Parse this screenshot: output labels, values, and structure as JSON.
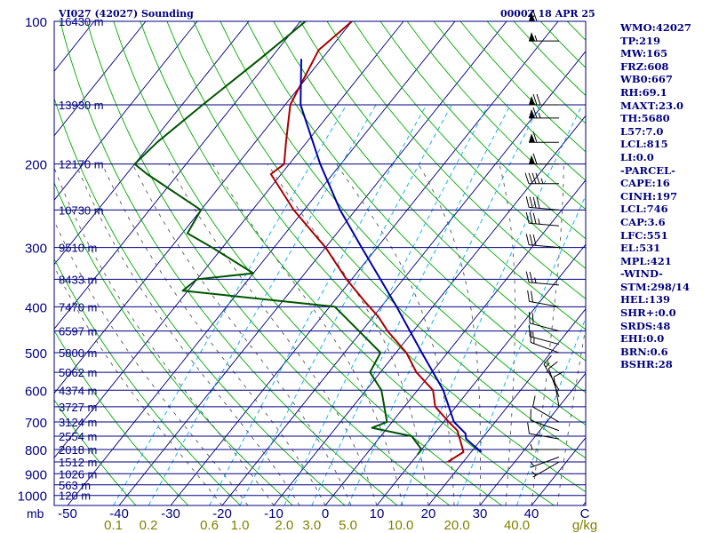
{
  "header": {
    "station_title": "VI027 (42027) Sounding",
    "valid_time": "0000Z 18 APR 25"
  },
  "indices": [
    "WMO:42027",
    "TP:219",
    "MW:165",
    "FRZ:608",
    "WB0:667",
    "RH:69.1",
    "MAXT:23.0",
    "TH:5680",
    "L57:7.0",
    "LCL:815",
    "LI:0.0",
    "-PARCEL-",
    "CAPE:16",
    "CINH:197",
    "LCL:746",
    "CAP:3.6",
    "LFC:551",
    "EL:531",
    "MPL:421",
    "-WIND-",
    "STM:298/14",
    "HEL:139",
    "SHR+:0.0",
    "SRDS:48",
    "EHI:0.0",
    "BRN:0.6",
    "BSHR:28"
  ],
  "colors": {
    "isobar": "#000080",
    "isotherm": "#000080",
    "dry_adiabat": "#00aa00",
    "mixing_ratio": "#00aaee",
    "moist_adiabat": "#555555",
    "temperature": "#aa0000",
    "dewpoint": "#005500",
    "parcel": "#0000aa",
    "wind_barb": "#000000",
    "axis_text": "#000080",
    "mixing_ratio_text": "#808000"
  },
  "chart_data": {
    "type": "line",
    "title": "VI027 (42027) Sounding",
    "xlabel": "C",
    "ylabel": "mb",
    "pressure_levels": [
      100,
      200,
      300,
      400,
      500,
      600,
      700,
      800,
      900,
      1000
    ],
    "pressure_labels": [
      "100",
      "200",
      "300",
      "400",
      "500",
      "600",
      "700",
      "800",
      "900",
      "1000"
    ],
    "pressure_axis_unit": "mb",
    "temperature_ticks": [
      "-50",
      "-40",
      "-30",
      "-20",
      "-10",
      "0",
      "10",
      "20",
      "30",
      "40"
    ],
    "temperature_tick_values": [
      -50,
      -40,
      -30,
      -20,
      -10,
      0,
      10,
      20,
      30,
      40
    ],
    "temperature_axis_unit": "C",
    "mixing_ratio_labels": [
      "0.1",
      "0.2",
      "0.6",
      "1.0",
      "2.0",
      "3.0",
      "5.0",
      "10.0",
      "20.0",
      "40.0"
    ],
    "mixing_ratio_values": [
      0.1,
      0.2,
      0.6,
      1.0,
      2.0,
      3.0,
      5.0,
      10.0,
      20.0,
      40.0
    ],
    "mixing_ratio_unit": "g/kg",
    "height_labels": [
      {
        "p": 100,
        "label": "16430 m"
      },
      {
        "p": 150,
        "label": "13930 m"
      },
      {
        "p": 200,
        "label": "12170 m"
      },
      {
        "p": 250,
        "label": "10730 m"
      },
      {
        "p": 300,
        "label": "9510 m"
      },
      {
        "p": 350,
        "label": "8433 m"
      },
      {
        "p": 400,
        "label": "7470 m"
      },
      {
        "p": 450,
        "label": "6597 m"
      },
      {
        "p": 500,
        "label": "5800 m"
      },
      {
        "p": 550,
        "label": "5062 m"
      },
      {
        "p": 600,
        "label": "4374 m"
      },
      {
        "p": 650,
        "label": "3727 m"
      },
      {
        "p": 700,
        "label": "3124 m"
      },
      {
        "p": 750,
        "label": "2554 m"
      },
      {
        "p": 800,
        "label": "2018 m"
      },
      {
        "p": 850,
        "label": "1512 m"
      },
      {
        "p": 900,
        "label": "1026 m"
      },
      {
        "p": 950,
        "label": "563 m"
      },
      {
        "p": 1000,
        "label": "120 m"
      }
    ],
    "extra_isobars": [
      150,
      250,
      350,
      450,
      550,
      650,
      750,
      850,
      950
    ],
    "series": [
      {
        "key": "temperature",
        "points": [
          [
            100,
            -70
          ],
          [
            115,
            -72
          ],
          [
            150,
            -69
          ],
          [
            180,
            -64
          ],
          [
            200,
            -61
          ],
          [
            210,
            -62
          ],
          [
            250,
            -52
          ],
          [
            300,
            -40
          ],
          [
            350,
            -31
          ],
          [
            390,
            -24
          ],
          [
            420,
            -19
          ],
          [
            450,
            -15
          ],
          [
            500,
            -8
          ],
          [
            550,
            -3
          ],
          [
            600,
            3
          ],
          [
            650,
            6
          ],
          [
            700,
            11
          ],
          [
            730,
            14
          ],
          [
            800,
            18
          ],
          [
            810,
            18.5
          ],
          [
            850,
            17
          ]
        ]
      },
      {
        "key": "dewpoint",
        "points": [
          [
            100,
            -79
          ],
          [
            120,
            -82
          ],
          [
            150,
            -86
          ],
          [
            180,
            -89
          ],
          [
            200,
            -90
          ],
          [
            210,
            -86
          ],
          [
            250,
            -70
          ],
          [
            280,
            -69
          ],
          [
            300,
            -62
          ],
          [
            340,
            -50
          ],
          [
            350,
            -60
          ],
          [
            370,
            -61
          ],
          [
            400,
            -29
          ],
          [
            500,
            -13
          ],
          [
            550,
            -12
          ],
          [
            600,
            -7
          ],
          [
            700,
            -1
          ],
          [
            720,
            -3
          ],
          [
            750,
            6
          ],
          [
            800,
            10
          ],
          [
            820,
            10
          ]
        ]
      },
      {
        "key": "parcel",
        "points": [
          [
            810,
            22
          ],
          [
            780,
            19
          ],
          [
            760,
            17
          ],
          [
            740,
            16
          ],
          [
            700,
            12
          ],
          [
            600,
            5
          ],
          [
            500,
            -5
          ],
          [
            400,
            -17
          ],
          [
            300,
            -33
          ],
          [
            250,
            -43
          ],
          [
            200,
            -54
          ],
          [
            150,
            -67
          ],
          [
            120,
            -74
          ]
        ]
      }
    ],
    "winds": [
      {
        "p": 100,
        "dir": 270,
        "spd": 60
      },
      {
        "p": 110,
        "dir": 270,
        "spd": 55
      },
      {
        "p": 150,
        "dir": 270,
        "spd": 70
      },
      {
        "p": 160,
        "dir": 270,
        "spd": 65
      },
      {
        "p": 180,
        "dir": 270,
        "spd": 60
      },
      {
        "p": 200,
        "dir": 270,
        "spd": 60
      },
      {
        "p": 220,
        "dir": 270,
        "spd": 45
      },
      {
        "p": 250,
        "dir": 275,
        "spd": 40
      },
      {
        "p": 270,
        "dir": 275,
        "spd": 35
      },
      {
        "p": 300,
        "dir": 275,
        "spd": 30
      },
      {
        "p": 360,
        "dir": 275,
        "spd": 25
      },
      {
        "p": 400,
        "dir": 280,
        "spd": 20
      },
      {
        "p": 450,
        "dir": 285,
        "spd": 20
      },
      {
        "p": 480,
        "dir": 285,
        "spd": 15
      },
      {
        "p": 500,
        "dir": 290,
        "spd": 15
      },
      {
        "p": 600,
        "dir": 330,
        "spd": 15
      },
      {
        "p": 620,
        "dir": 340,
        "spd": 10
      },
      {
        "p": 650,
        "dir": 350,
        "spd": 10
      },
      {
        "p": 700,
        "dir": 300,
        "spd": 10
      },
      {
        "p": 730,
        "dir": 290,
        "spd": 10
      },
      {
        "p": 760,
        "dir": 280,
        "spd": 10
      },
      {
        "p": 800,
        "dir": 270,
        "spd": 5
      },
      {
        "p": 830,
        "dir": 250,
        "spd": 5
      },
      {
        "p": 850,
        "dir": 240,
        "spd": 5
      }
    ]
  }
}
